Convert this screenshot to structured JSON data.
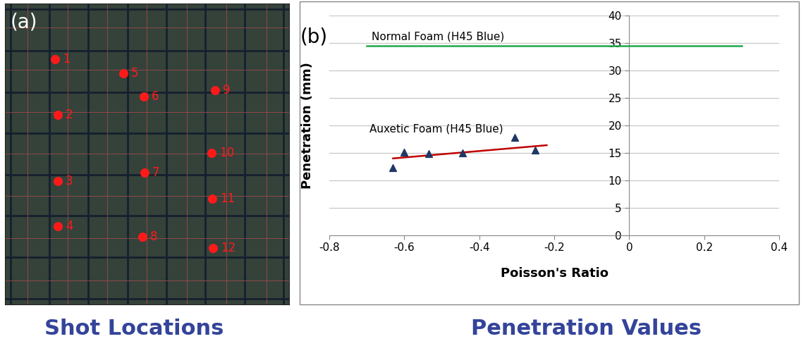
{
  "chart_data": [
    {
      "type": "scatter",
      "panel_label": "(a)",
      "caption": "Shot Locations",
      "xlim": [
        0,
        100
      ],
      "ylim": [
        0,
        100
      ],
      "tick_labels": false,
      "grid": true,
      "x": [
        17.6,
        18.6,
        18.6,
        18.6,
        41.7,
        48.9,
        49.1,
        48.4,
        73.9,
        72.7,
        73.0,
        73.2
      ],
      "values": [
        81.5,
        63.0,
        41.0,
        26.0,
        76.8,
        69.1,
        43.8,
        22.5,
        71.2,
        50.4,
        35.1,
        18.7
      ],
      "labels": [
        "1",
        "2",
        "3",
        "4",
        "5",
        "6",
        "7",
        "8",
        "9",
        "10",
        "11",
        "12"
      ],
      "color": "#ff1a1a",
      "marker": "circle"
    },
    {
      "type": "scatter",
      "panel_label": "(b)",
      "caption": "Penetration Values",
      "x_label": "Poisson's Ratio",
      "y_label": "Penetration (mm)",
      "xlim": [
        -0.8,
        0.4
      ],
      "xticks": [
        -0.8,
        -0.6,
        -0.4,
        -0.2,
        0,
        0.2,
        0.4
      ],
      "ylim": [
        0,
        40
      ],
      "yticks": [
        0,
        5,
        10,
        15,
        20,
        25,
        30,
        35,
        40
      ],
      "grid": true,
      "series": [
        {
          "name": "Normal Foam (H45 Blue)",
          "type": "line",
          "color": "#1fa84a",
          "line_style": "solid",
          "x": [
            -0.7,
            0.3
          ],
          "values": [
            34.5,
            34.5
          ]
        },
        {
          "name": "Auxetic Foam (H45 Blue)",
          "type": "scatter",
          "color": "#1f3864",
          "marker": "triangle",
          "x": [
            -0.63,
            -0.6,
            -0.535,
            -0.445,
            -0.305,
            -0.25
          ],
          "values": [
            12.3,
            15.1,
            14.9,
            15.0,
            17.8,
            15.5
          ]
        },
        {
          "type": "line",
          "color": "#c00000",
          "line_style": "solid",
          "x": [
            -0.63,
            -0.22
          ],
          "values": [
            14.0,
            16.4
          ]
        }
      ]
    }
  ]
}
